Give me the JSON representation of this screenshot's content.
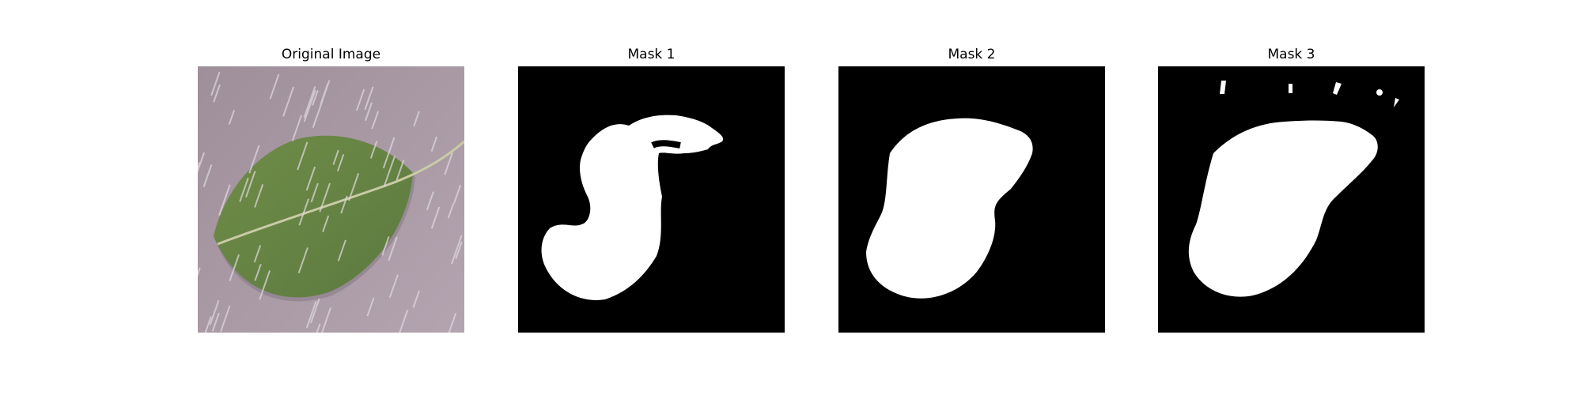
{
  "panels": [
    {
      "title": "Original Image",
      "kind": "photo",
      "subject": "leaf-photo"
    },
    {
      "title": "Mask 1",
      "kind": "mask"
    },
    {
      "title": "Mask 2",
      "kind": "mask"
    },
    {
      "title": "Mask 3",
      "kind": "mask"
    }
  ],
  "colors": {
    "background": "#a89aa4",
    "leaf": "#6d8a4a",
    "leaf_dark": "#4f6b38",
    "rain": "#d9d2d6",
    "mask_fg": "#ffffff",
    "mask_bg": "#000000"
  }
}
